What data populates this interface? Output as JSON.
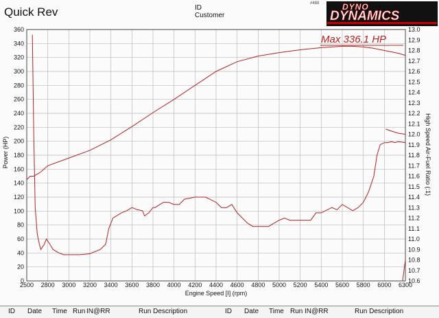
{
  "header": {
    "title": "Quick Rev",
    "id_label": "ID",
    "customer_label": "Customer",
    "sheet_number": "#488",
    "logo_top": "DYNO",
    "logo_main": "DYNAMICS"
  },
  "annotation": "Max 336.1 HP",
  "footer": {
    "columns": [
      "ID",
      "Date",
      "Time",
      "Run",
      "IN@RR",
      "Run Description",
      "ID",
      "Date",
      "Time",
      "Run",
      "IN@RR",
      "Run Description"
    ]
  },
  "colors": {
    "curve": "#b52020",
    "grid": "#b9b9b9"
  },
  "chart_data": {
    "type": "line",
    "xlabel": "Engine Speed [I] (rpm)",
    "ylabel": "Power (HP)",
    "y2label": "High Speed Air-Fuel Ratio (:1)",
    "xlim": [
      2500,
      6300
    ],
    "ylim": [
      0,
      360
    ],
    "y2lim": [
      10.6,
      13.0
    ],
    "grid": true,
    "x_ticks": [
      2500,
      2800,
      3000,
      3200,
      3400,
      3600,
      3800,
      4000,
      4200,
      4400,
      4600,
      4800,
      5000,
      5200,
      5400,
      5600,
      5800,
      6000,
      6300
    ],
    "y_ticks": [
      0,
      20,
      40,
      60,
      80,
      100,
      120,
      140,
      160,
      180,
      200,
      220,
      240,
      260,
      280,
      300,
      320,
      340,
      360
    ],
    "y2_ticks": [
      "10.6",
      "10.7",
      "10.8",
      "10.9",
      "11.0",
      "11.1",
      "11.2",
      "11.3",
      "11.4",
      "11.5",
      "11.6",
      "11.7",
      "11.8",
      "11.9",
      "12.0",
      "12.1",
      "12.2",
      "12.3",
      "12.4",
      "12.5",
      "12.6",
      "12.7",
      "12.8",
      "12.9",
      "13.0"
    ],
    "series": [
      {
        "axis": "left",
        "x": [
          2500,
          2550,
          2600,
          2700,
          2800,
          3000,
          3200,
          3400,
          3600,
          3800,
          4000,
          4200,
          4400,
          4600,
          4800,
          5000,
          5200,
          5400,
          5600,
          5700,
          5800,
          5900,
          6000,
          6100,
          6200,
          6300
        ],
        "y": [
          145,
          150,
          150,
          156,
          165,
          176,
          187,
          202,
          221,
          241,
          260,
          280,
          300,
          314,
          322,
          327,
          331,
          334,
          336,
          336,
          335,
          333,
          330,
          328,
          326,
          323
        ]
      },
      {
        "axis": "right",
        "x": [
          2580,
          2600,
          2620,
          2650,
          2680,
          2700,
          2750,
          2780,
          2820,
          2850,
          2900,
          2950,
          3000,
          3100,
          3200,
          3300,
          3350,
          3380,
          3420,
          3500,
          3550,
          3600,
          3650,
          3700,
          3720,
          3760,
          3800,
          3820,
          3850,
          3900,
          3950,
          4000,
          4050,
          4100,
          4200,
          4300,
          4400,
          4450,
          4500,
          4550,
          4600,
          4650,
          4700,
          4750,
          4800,
          4900,
          4950,
          5000,
          5050,
          5100,
          5200,
          5300,
          5350,
          5400,
          5500,
          5550,
          5600,
          5700,
          5750,
          5800,
          5850,
          5900,
          5930,
          5960,
          6000,
          6050,
          6100,
          6150,
          6200,
          6300
        ],
        "y": [
          12.95,
          12.0,
          11.3,
          11.05,
          10.95,
          10.9,
          10.95,
          11.0,
          10.95,
          10.9,
          10.87,
          10.85,
          10.85,
          10.85,
          10.86,
          10.9,
          10.95,
          11.1,
          11.2,
          11.25,
          11.27,
          11.3,
          11.28,
          11.27,
          11.22,
          11.25,
          11.3,
          11.3,
          11.32,
          11.35,
          11.35,
          11.33,
          11.33,
          11.38,
          11.4,
          11.4,
          11.35,
          11.3,
          11.3,
          11.33,
          11.25,
          11.2,
          11.15,
          11.12,
          11.12,
          11.12,
          11.15,
          11.18,
          11.2,
          11.18,
          11.18,
          11.18,
          11.25,
          11.25,
          11.3,
          11.28,
          11.33,
          11.27,
          11.3,
          11.35,
          11.45,
          11.6,
          11.8,
          11.9,
          11.92,
          11.92,
          11.93,
          11.92,
          11.93,
          11.92
        ]
      },
      {
        "axis": "right",
        "x": [
          6020,
          6100,
          6200,
          6300
        ],
        "y": [
          12.05,
          12.03,
          12.01,
          12.0
        ]
      },
      {
        "axis": "right",
        "x": [
          6260,
          6300
        ],
        "y": [
          10.6,
          10.8
        ]
      }
    ]
  }
}
